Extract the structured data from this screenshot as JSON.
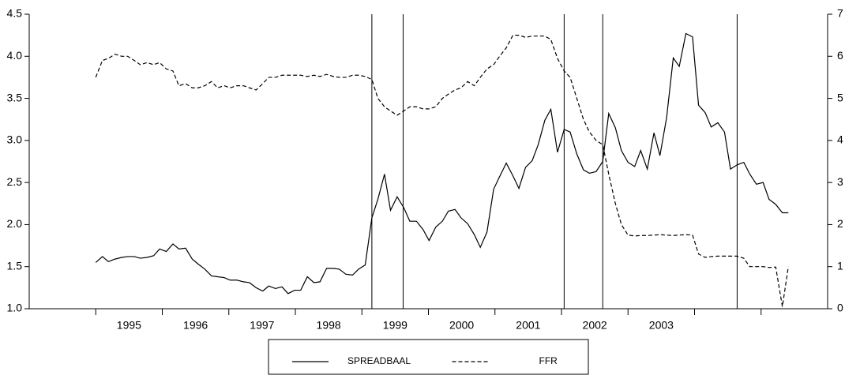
{
  "chart_data": {
    "type": "line",
    "x": [
      1995.0,
      1995.1,
      1995.19,
      1995.29,
      1995.39,
      1995.48,
      1995.58,
      1995.67,
      1995.77,
      1995.87,
      1995.96,
      1996.06,
      1996.16,
      1996.25,
      1996.35,
      1996.45,
      1996.54,
      1996.64,
      1996.74,
      1996.83,
      1996.93,
      1997.02,
      1997.12,
      1997.22,
      1997.31,
      1997.41,
      1997.51,
      1997.6,
      1997.7,
      1997.8,
      1997.89,
      1997.99,
      1998.08,
      1998.18,
      1998.28,
      1998.37,
      1998.47,
      1998.57,
      1998.66,
      1998.76,
      1998.86,
      1998.95,
      1999.05,
      1999.15,
      1999.24,
      1999.34,
      1999.43,
      1999.53,
      1999.63,
      1999.72,
      1999.82,
      1999.92,
      2000.01,
      2000.11,
      2000.21,
      2000.3,
      2000.4,
      2000.49,
      2000.59,
      2000.69,
      2000.78,
      2000.88,
      2000.98,
      2001.07,
      2001.17,
      2001.27,
      2001.36,
      2001.46,
      2001.56,
      2001.65,
      2001.75,
      2001.84,
      2001.94,
      2002.04,
      2002.13,
      2002.23,
      2002.33,
      2002.42,
      2002.52,
      2002.62,
      2002.71,
      2002.81,
      2002.9,
      2003.0,
      2003.1,
      2003.19,
      2003.29,
      2003.39,
      2003.48,
      2003.58,
      2003.68,
      2003.77,
      2003.87,
      2003.97,
      2004.06,
      2004.16,
      2004.25,
      2004.35,
      2004.45,
      2004.54,
      2004.64,
      2004.74,
      2004.83,
      2004.93,
      2005.03,
      2005.12,
      2005.22,
      2005.32,
      2005.41
    ],
    "series": [
      {
        "name": "SPREADBAAL",
        "color": "#000000",
        "line_style": "solid",
        "values": [
          1.55,
          1.62,
          1.56,
          1.59,
          1.61,
          1.62,
          1.62,
          1.6,
          1.61,
          1.63,
          1.71,
          1.68,
          1.77,
          1.71,
          1.72,
          1.59,
          1.53,
          1.47,
          1.39,
          1.38,
          1.37,
          1.34,
          1.34,
          1.32,
          1.31,
          1.25,
          1.21,
          1.27,
          1.24,
          1.26,
          1.18,
          1.22,
          1.22,
          1.38,
          1.31,
          1.32,
          1.48,
          1.48,
          1.47,
          1.41,
          1.4,
          1.47,
          1.52,
          2.08,
          2.3,
          2.6,
          2.17,
          2.33,
          2.2,
          2.04,
          2.04,
          1.94,
          1.81,
          1.97,
          2.04,
          2.16,
          2.18,
          2.08,
          2.01,
          1.88,
          1.73,
          1.91,
          2.42,
          2.57,
          2.73,
          2.58,
          2.43,
          2.68,
          2.76,
          2.95,
          3.24,
          3.37,
          2.86,
          3.13,
          3.1,
          2.84,
          2.65,
          2.61,
          2.63,
          2.75,
          3.32,
          3.15,
          2.88,
          2.74,
          2.69,
          2.88,
          2.66,
          3.09,
          2.82,
          3.27,
          3.98,
          3.88,
          4.27,
          4.23,
          3.42,
          3.33,
          3.16,
          3.21,
          3.1,
          2.66,
          2.71,
          2.74,
          2.6,
          2.48,
          2.5,
          2.3,
          2.24,
          2.14,
          2.14
        ]
      },
      {
        "name": "FFR",
        "color": "#000000",
        "line_style": "dashed",
        "axis": "y2",
        "values": [
          5.5,
          5.9,
          5.95,
          6.05,
          6.0,
          6.0,
          5.9,
          5.8,
          5.85,
          5.8,
          5.85,
          5.7,
          5.65,
          5.3,
          5.35,
          5.25,
          5.25,
          5.3,
          5.4,
          5.25,
          5.3,
          5.25,
          5.3,
          5.3,
          5.25,
          5.2,
          5.35,
          5.5,
          5.5,
          5.55,
          5.55,
          5.55,
          5.55,
          5.52,
          5.55,
          5.52,
          5.57,
          5.52,
          5.5,
          5.5,
          5.55,
          5.55,
          5.52,
          5.45,
          5.0,
          4.8,
          4.7,
          4.6,
          4.7,
          4.8,
          4.8,
          4.75,
          4.75,
          4.8,
          5.0,
          5.1,
          5.2,
          5.25,
          5.4,
          5.3,
          5.5,
          5.7,
          5.8,
          6.0,
          6.2,
          6.5,
          6.5,
          6.45,
          6.48,
          6.48,
          6.48,
          6.4,
          5.95,
          5.65,
          5.5,
          5.0,
          4.5,
          4.2,
          4.0,
          3.9,
          3.2,
          2.5,
          2.0,
          1.75,
          1.73,
          1.74,
          1.74,
          1.75,
          1.76,
          1.75,
          1.74,
          1.75,
          1.76,
          1.75,
          1.3,
          1.22,
          1.24,
          1.25,
          1.25,
          1.25,
          1.25,
          1.2,
          1.0,
          1.0,
          1.0,
          0.98,
          0.99,
          0.05,
          1.0
        ]
      }
    ],
    "xlim": [
      1994,
      2006
    ],
    "xticks": [
      1995,
      1996,
      1997,
      1998,
      1999,
      2000,
      2001,
      2002,
      2003,
      2004,
      2005
    ],
    "xlabels": [
      {
        "value": 1995.5,
        "label": "1995"
      },
      {
        "value": 1996.5,
        "label": "1996"
      },
      {
        "value": 1997.5,
        "label": "1997"
      },
      {
        "value": 1998.5,
        "label": "1998"
      },
      {
        "value": 1999.5,
        "label": "1999"
      },
      {
        "value": 2000.5,
        "label": "2000"
      },
      {
        "value": 2001.5,
        "label": "2001"
      },
      {
        "value": 2002.5,
        "label": "2002"
      },
      {
        "value": 2003.5,
        "label": "2003"
      }
    ],
    "ylim": [
      1.0,
      4.5
    ],
    "yticks": [
      {
        "value": 1.0,
        "label": "1.0"
      },
      1.5,
      {
        "value": 2.0,
        "label": "2.0"
      },
      2.5,
      {
        "value": 3.0,
        "label": "3.0"
      },
      3.5,
      {
        "value": 4.0,
        "label": "4.0"
      },
      4.5
    ],
    "y2lim": [
      0,
      7
    ],
    "y2ticks": [
      0,
      1,
      2,
      3,
      4,
      5,
      6,
      7
    ],
    "vlines": [
      1999.15,
      1999.62,
      2002.04,
      2002.62,
      2004.64
    ],
    "legend": "bottom"
  }
}
